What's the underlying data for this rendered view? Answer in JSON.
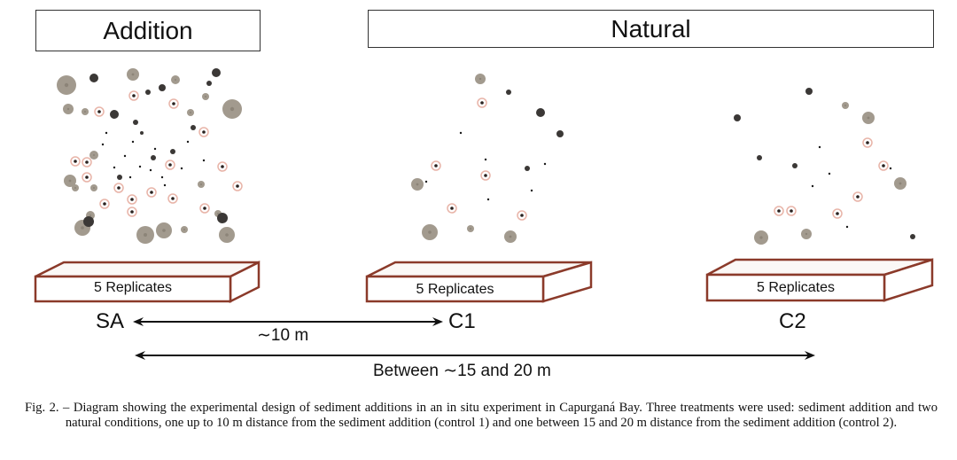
{
  "headers": {
    "addition": "Addition",
    "natural": "Natural"
  },
  "boxes": [
    {
      "label": "5 Replicates",
      "site": "SA"
    },
    {
      "label": "5 Replicates",
      "site": "C1"
    },
    {
      "label": "5 Replicates",
      "site": "C2"
    }
  ],
  "distances": {
    "short": "∼10 m",
    "long": "Between ∼15 and 20 m"
  },
  "caption": "Fig. 2. – Diagram showing the experimental design of sediment additions in an in situ experiment in Capurganá Bay. Three treatments were used: sediment addition and two natural conditions, one up to 10 m distance from the sediment addition (control 1) and one between 15 and 20 m distance from the sediment addition (control 2).",
  "colors": {
    "box_edge": "#8b3a2a",
    "particle_gray": "#a29a8e",
    "particle_dark": "#3b3836",
    "particle_pink": "#e8b4a8"
  }
}
